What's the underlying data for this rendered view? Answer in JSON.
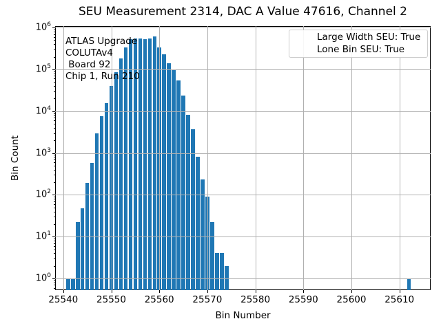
{
  "title": "SEU Measurement 2314, DAC A Value 47616, Channel 2",
  "annotation": {
    "lines": [
      "ATLAS Upgrade",
      "COLUTAv4",
      " Board 92",
      "Chip 1, Run 210"
    ]
  },
  "legend": {
    "patch_color": "#1f77b4",
    "lines": [
      "Large Width SEU: True",
      "Lone Bin SEU: True"
    ]
  },
  "chart_data": {
    "type": "bar",
    "title": "SEU Measurement 2314, DAC A Value 47616, Channel 2",
    "xlabel": "Bin Number",
    "ylabel": "Bin Count",
    "yscale": "log",
    "grid": true,
    "legend_position": "upper right",
    "xlim": [
      25538.3,
      25616.5
    ],
    "ylim": [
      0.525,
      1080000
    ],
    "xticks": [
      25540,
      25550,
      25560,
      25570,
      25580,
      25590,
      25600,
      25610
    ],
    "ytick_exponents": [
      0,
      1,
      2,
      3,
      4,
      5,
      6
    ],
    "bar_color": "#1f77b4",
    "grid_color": "#b0b0b0",
    "bar_width_bins": 0.8,
    "bins": [
      25541,
      25542,
      25543,
      25544,
      25545,
      25546,
      25547,
      25548,
      25549,
      25550,
      25551,
      25552,
      25553,
      25554,
      25555,
      25556,
      25557,
      25558,
      25559,
      25560,
      25561,
      25562,
      25563,
      25564,
      25565,
      25566,
      25567,
      25568,
      25569,
      25570,
      25571,
      25572,
      25573,
      25574,
      25612
    ],
    "counts": [
      1,
      1,
      22,
      48,
      190,
      570,
      3000,
      7700,
      15500,
      40000,
      87000,
      185000,
      330000,
      535000,
      545000,
      540000,
      530000,
      550000,
      620000,
      340000,
      230000,
      140000,
      100000,
      55000,
      24000,
      8300,
      3650,
      800,
      230,
      90,
      22,
      4,
      4,
      2,
      1
    ]
  }
}
